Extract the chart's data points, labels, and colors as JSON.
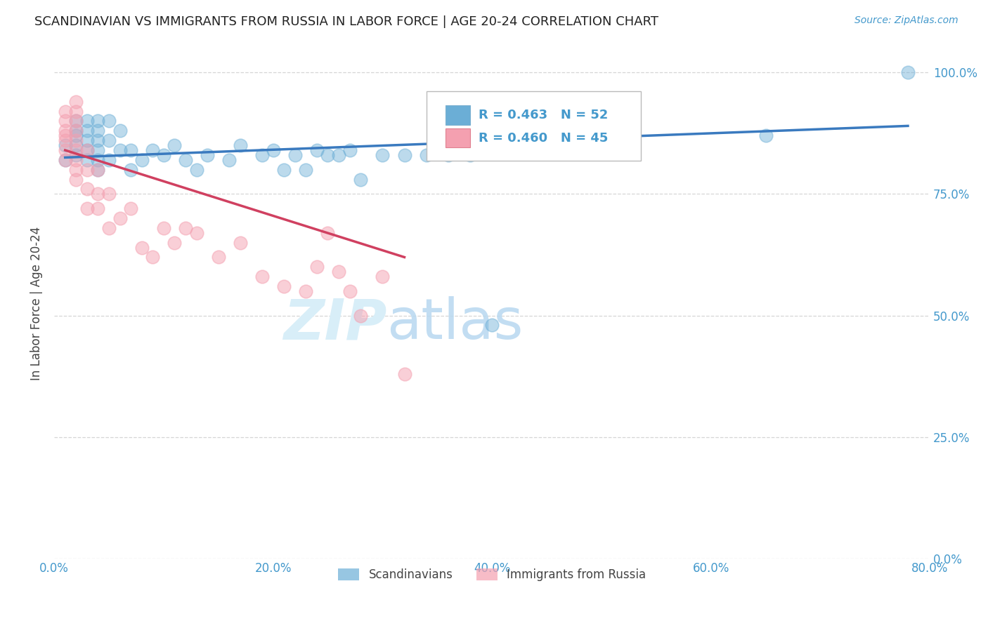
{
  "title": "SCANDINAVIAN VS IMMIGRANTS FROM RUSSIA IN LABOR FORCE | AGE 20-24 CORRELATION CHART",
  "source": "Source: ZipAtlas.com",
  "xlabel_ticks": [
    "0.0%",
    "20.0%",
    "40.0%",
    "60.0%",
    "80.0%"
  ],
  "ylabel_ticks": [
    "0.0%",
    "25.0%",
    "50.0%",
    "75.0%",
    "100.0%"
  ],
  "ylabel_label": "In Labor Force | Age 20-24",
  "xlim": [
    0.0,
    0.8
  ],
  "ylim": [
    0.0,
    1.05
  ],
  "legend1_label": "R = 0.463   N = 52",
  "legend2_label": "R = 0.460   N = 45",
  "legend3_label": "Scandinavians",
  "legend4_label": "Immigrants from Russia",
  "blue_color": "#6baed6",
  "pink_color": "#f4a0b0",
  "trend_blue": "#3a7abf",
  "trend_pink": "#d04060",
  "title_color": "#222222",
  "axis_label_color": "#444444",
  "tick_color": "#4499cc",
  "source_color": "#4499cc",
  "grid_color": "#cccccc",
  "watermark_color": "#d8eef8",
  "scan_x": [
    0.01,
    0.01,
    0.02,
    0.02,
    0.02,
    0.02,
    0.02,
    0.03,
    0.03,
    0.03,
    0.03,
    0.03,
    0.04,
    0.04,
    0.04,
    0.04,
    0.04,
    0.04,
    0.05,
    0.05,
    0.05,
    0.06,
    0.06,
    0.07,
    0.07,
    0.08,
    0.09,
    0.1,
    0.11,
    0.12,
    0.13,
    0.14,
    0.16,
    0.17,
    0.19,
    0.2,
    0.21,
    0.22,
    0.23,
    0.24,
    0.25,
    0.26,
    0.27,
    0.28,
    0.3,
    0.32,
    0.34,
    0.36,
    0.38,
    0.4,
    0.65,
    0.78
  ],
  "scan_y": [
    0.82,
    0.85,
    0.83,
    0.85,
    0.87,
    0.88,
    0.9,
    0.82,
    0.84,
    0.86,
    0.88,
    0.9,
    0.8,
    0.82,
    0.84,
    0.86,
    0.88,
    0.9,
    0.82,
    0.86,
    0.9,
    0.84,
    0.88,
    0.8,
    0.84,
    0.82,
    0.84,
    0.83,
    0.85,
    0.82,
    0.8,
    0.83,
    0.82,
    0.85,
    0.83,
    0.84,
    0.8,
    0.83,
    0.8,
    0.84,
    0.83,
    0.83,
    0.84,
    0.78,
    0.83,
    0.83,
    0.83,
    0.83,
    0.83,
    0.48,
    0.87,
    1.0
  ],
  "rus_x": [
    0.01,
    0.01,
    0.01,
    0.01,
    0.01,
    0.01,
    0.01,
    0.02,
    0.02,
    0.02,
    0.02,
    0.02,
    0.02,
    0.02,
    0.02,
    0.02,
    0.03,
    0.03,
    0.03,
    0.03,
    0.04,
    0.04,
    0.04,
    0.05,
    0.05,
    0.06,
    0.07,
    0.08,
    0.09,
    0.1,
    0.11,
    0.12,
    0.13,
    0.15,
    0.17,
    0.19,
    0.21,
    0.23,
    0.24,
    0.25,
    0.26,
    0.27,
    0.28,
    0.3,
    0.32
  ],
  "rus_y": [
    0.82,
    0.84,
    0.86,
    0.87,
    0.88,
    0.9,
    0.92,
    0.78,
    0.8,
    0.82,
    0.84,
    0.86,
    0.88,
    0.9,
    0.92,
    0.94,
    0.72,
    0.76,
    0.8,
    0.84,
    0.72,
    0.75,
    0.8,
    0.68,
    0.75,
    0.7,
    0.72,
    0.64,
    0.62,
    0.68,
    0.65,
    0.68,
    0.67,
    0.62,
    0.65,
    0.58,
    0.56,
    0.55,
    0.6,
    0.67,
    0.59,
    0.55,
    0.5,
    0.58,
    0.38
  ],
  "scan_trend_x": [
    0.01,
    0.78
  ],
  "scan_trend_y": [
    0.825,
    0.89
  ],
  "rus_trend_x": [
    0.01,
    0.32
  ],
  "rus_trend_y": [
    0.84,
    0.62
  ]
}
